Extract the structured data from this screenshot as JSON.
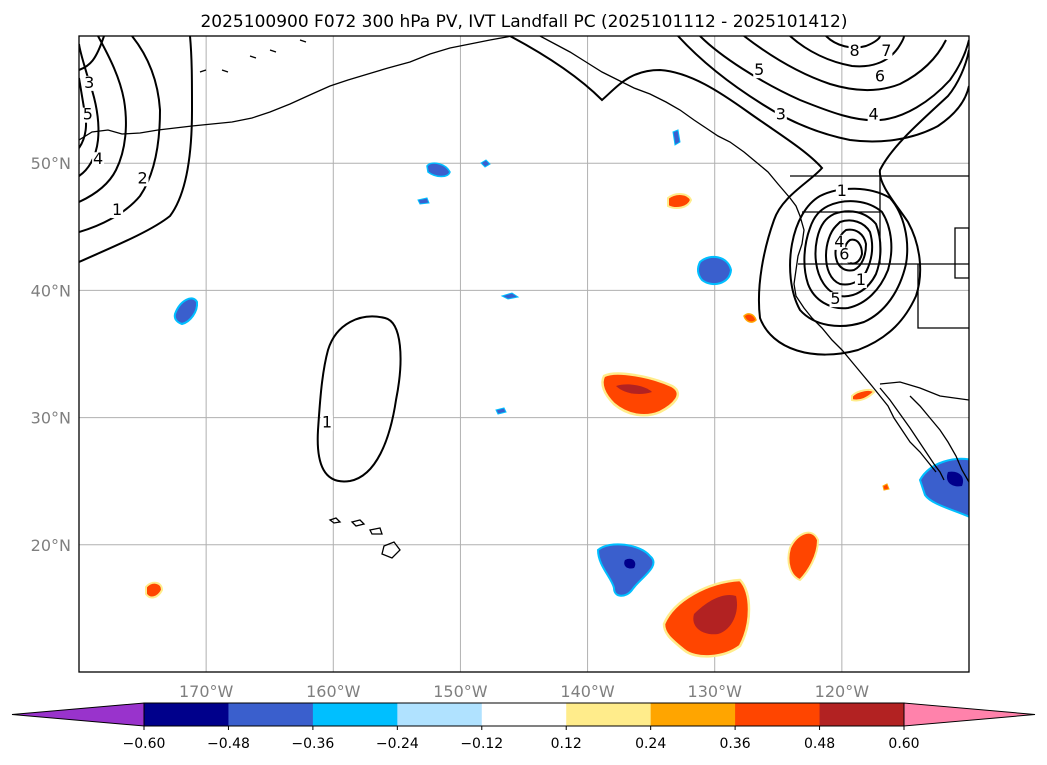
{
  "chart_data": {
    "type": "map-contour",
    "title": "2025100900 F072 300 hPa PV, IVT Landfall PC (2025101112 - 2025101412)",
    "lon_range": [
      -180,
      -110
    ],
    "lat_range": [
      10,
      60
    ],
    "x_ticks": [
      -170,
      -160,
      -150,
      -140,
      -130,
      -120
    ],
    "x_tick_labels": [
      "170°W",
      "160°W",
      "150°W",
      "140°W",
      "130°W",
      "120°W"
    ],
    "y_ticks": [
      20,
      30,
      40,
      50
    ],
    "y_tick_labels": [
      "20°N",
      "30°N",
      "40°N",
      "50°N"
    ],
    "grid": true,
    "colorbar": {
      "orientation": "horizontal",
      "extend": "both",
      "levels": [
        -0.6,
        -0.48,
        -0.36,
        -0.24,
        -0.12,
        0.12,
        0.24,
        0.36,
        0.48,
        0.6
      ],
      "tick_labels": [
        "−0.60",
        "−0.48",
        "−0.36",
        "−0.24",
        "−0.12",
        "0.12",
        "0.24",
        "0.36",
        "0.48",
        "0.60"
      ],
      "colors": [
        "#9933cc",
        "#00008b",
        "#3a5fcd",
        "#00bfff",
        "#b0e2ff",
        "#ffffff",
        "#ffec8b",
        "#ffa500",
        "#ff4500",
        "#b22222",
        "#ff82ab"
      ]
    },
    "contour_labels": [
      {
        "text": "1",
        "lon": -160.5,
        "lat": 29.3
      },
      {
        "text": "1",
        "lon": -177.0,
        "lat": 46.0
      },
      {
        "text": "2",
        "lon": -175.0,
        "lat": 48.5
      },
      {
        "text": "4",
        "lon": -178.5,
        "lat": 50.0
      },
      {
        "text": "5",
        "lon": -179.3,
        "lat": 53.5
      },
      {
        "text": "3",
        "lon": -179.2,
        "lat": 56.0
      },
      {
        "text": "1",
        "lon": -120.0,
        "lat": 47.5
      },
      {
        "text": "4",
        "lon": -120.2,
        "lat": 43.5
      },
      {
        "text": "6",
        "lon": -119.8,
        "lat": 42.5
      },
      {
        "text": "5",
        "lon": -120.5,
        "lat": 39.0
      },
      {
        "text": "1",
        "lon": -118.5,
        "lat": 40.5
      },
      {
        "text": "3",
        "lon": -124.8,
        "lat": 53.5
      },
      {
        "text": "5",
        "lon": -126.5,
        "lat": 57.0
      },
      {
        "text": "8",
        "lon": -119.0,
        "lat": 58.5
      },
      {
        "text": "7",
        "lon": -116.5,
        "lat": 58.5
      },
      {
        "text": "6",
        "lon": -117.0,
        "lat": 56.5
      },
      {
        "text": "4",
        "lon": -117.5,
        "lat": 53.5
      }
    ]
  }
}
